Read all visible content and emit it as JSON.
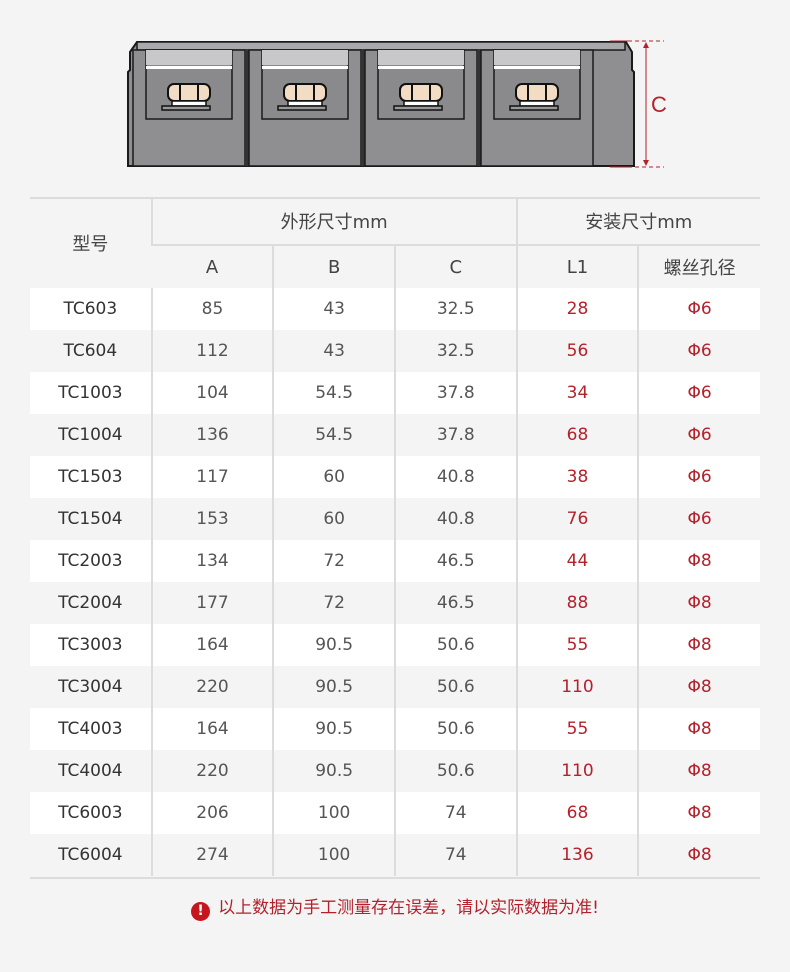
{
  "diagram": {
    "dimension_label": "C",
    "accent_color": "#b3222c"
  },
  "table": {
    "model_header": "型号",
    "outer_header": "外形尺寸mm",
    "install_header": "安装尺寸mm",
    "sub_headers": [
      "A",
      "B",
      "C",
      "L1",
      "螺丝孔径"
    ],
    "rows": [
      [
        "TC603",
        "85",
        "43",
        "32.5",
        "28",
        "Φ6"
      ],
      [
        "TC604",
        "112",
        "43",
        "32.5",
        "56",
        "Φ6"
      ],
      [
        "TC1003",
        "104",
        "54.5",
        "37.8",
        "34",
        "Φ6"
      ],
      [
        "TC1004",
        "136",
        "54.5",
        "37.8",
        "68",
        "Φ6"
      ],
      [
        "TC1503",
        "117",
        "60",
        "40.8",
        "38",
        "Φ6"
      ],
      [
        "TC1504",
        "153",
        "60",
        "40.8",
        "76",
        "Φ6"
      ],
      [
        "TC2003",
        "134",
        "72",
        "46.5",
        "44",
        "Φ8"
      ],
      [
        "TC2004",
        "177",
        "72",
        "46.5",
        "88",
        "Φ8"
      ],
      [
        "TC3003",
        "164",
        "90.5",
        "50.6",
        "55",
        "Φ8"
      ],
      [
        "TC3004",
        "220",
        "90.5",
        "50.6",
        "110",
        "Φ8"
      ],
      [
        "TC4003",
        "164",
        "90.5",
        "50.6",
        "55",
        "Φ8"
      ],
      [
        "TC4004",
        "220",
        "90.5",
        "50.6",
        "110",
        "Φ8"
      ],
      [
        "TC6003",
        "206",
        "100",
        "74",
        "68",
        "Φ8"
      ],
      [
        "TC6004",
        "274",
        "100",
        "74",
        "136",
        "Φ8"
      ]
    ]
  },
  "note": {
    "icon": "exclamation-circle-icon",
    "text": "以上数据为手工测量存在误差，请以实际数据为准!"
  }
}
